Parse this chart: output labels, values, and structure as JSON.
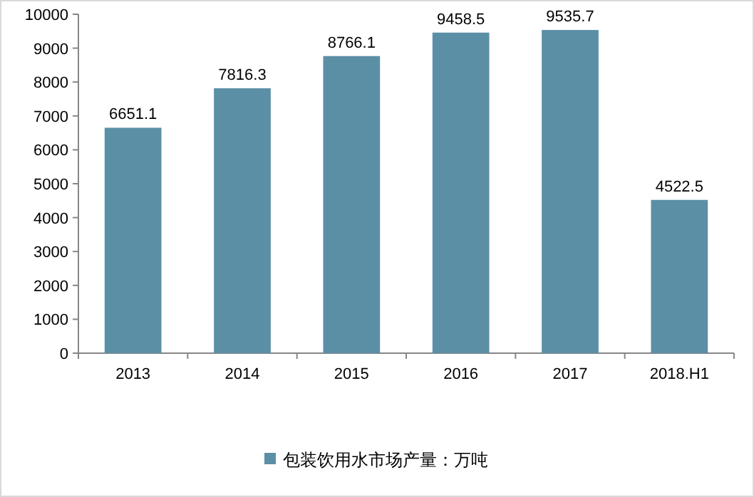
{
  "chart_data": {
    "type": "bar",
    "categories": [
      "2013",
      "2014",
      "2015",
      "2016",
      "2017",
      "2018.H1"
    ],
    "series": [
      {
        "name": "包装饮用水市场产量：万吨",
        "color": "#5b8fa6",
        "values": [
          6651.1,
          7816.3,
          8766.1,
          9458.5,
          9535.7,
          4522.5
        ]
      }
    ],
    "ylim": [
      0,
      10000
    ],
    "yticks": [
      0,
      1000,
      2000,
      3000,
      4000,
      5000,
      6000,
      7000,
      8000,
      9000,
      10000
    ],
    "data_labels": true,
    "legend": "bottom"
  }
}
